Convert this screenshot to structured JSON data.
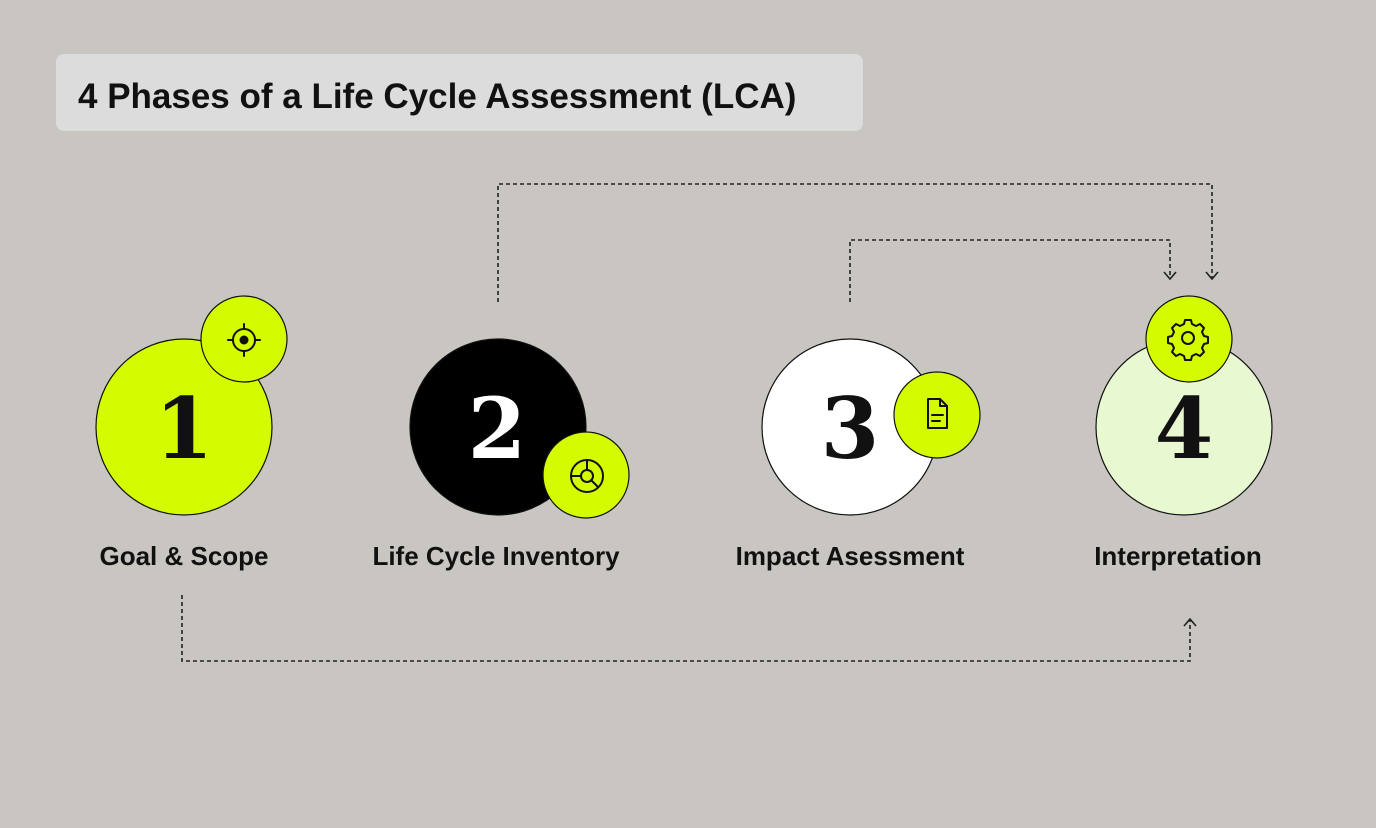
{
  "title": "4 Phases of a Life Cycle Assessment (LCA)",
  "phases": [
    {
      "number": "1",
      "label": "Goal & Scope"
    },
    {
      "number": "2",
      "label": "Life Cycle Inventory"
    },
    {
      "number": "3",
      "label": "Impact Asessment"
    },
    {
      "number": "4",
      "label": "Interpretation"
    }
  ]
}
